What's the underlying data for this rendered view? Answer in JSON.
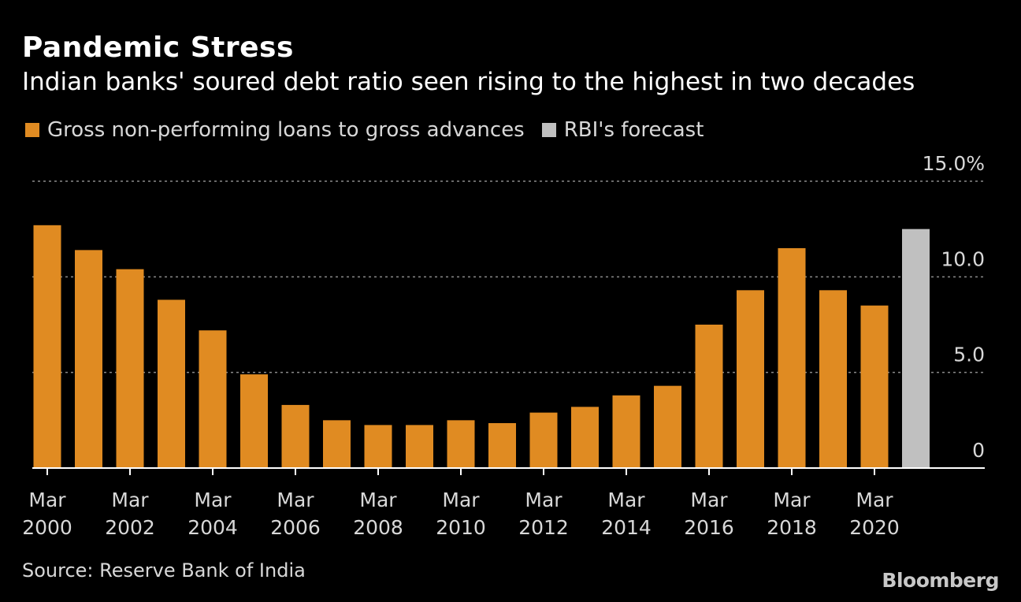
{
  "header": {
    "title": "Pandemic Stress",
    "subtitle": "Indian banks' soured debt ratio seen rising to the highest in two decades"
  },
  "legend": [
    {
      "label": "Gross non-performing loans to gross advances",
      "color": "#e08b22"
    },
    {
      "label": "RBI's forecast",
      "color": "#c0c0c0"
    }
  ],
  "footer": {
    "source": "Source: Reserve Bank of India",
    "brand": "Bloomberg"
  },
  "colors": {
    "background": "#000000",
    "actual": "#e08b22",
    "forecast": "#c0c0c0",
    "grid": "#8a8a8a",
    "axis": "#ffffff",
    "text": "#d8d8d8"
  },
  "chart_data": {
    "type": "bar",
    "title": "Pandemic Stress",
    "subtitle": "Indian banks' soured debt ratio seen rising to the highest in two decades",
    "categories": [
      "Mar 2000",
      "Mar 2001",
      "Mar 2002",
      "Mar 2003",
      "Mar 2004",
      "Mar 2005",
      "Mar 2006",
      "Mar 2007",
      "Mar 2008",
      "Mar 2009",
      "Mar 2010",
      "Mar 2011",
      "Mar 2012",
      "Mar 2013",
      "Mar 2014",
      "Mar 2015",
      "Mar 2016",
      "Mar 2017",
      "Mar 2018",
      "Mar 2019",
      "Mar 2020",
      "Mar 2021"
    ],
    "series": [
      {
        "name": "Gross non-performing loans to gross advances",
        "color": "#e08b22",
        "values": [
          12.7,
          11.4,
          10.4,
          8.8,
          7.2,
          4.9,
          3.3,
          2.5,
          2.25,
          2.25,
          2.5,
          2.35,
          2.9,
          3.2,
          3.8,
          4.3,
          7.5,
          9.3,
          11.5,
          9.3,
          8.5,
          null
        ]
      },
      {
        "name": "RBI's forecast",
        "color": "#c0c0c0",
        "values": [
          null,
          null,
          null,
          null,
          null,
          null,
          null,
          null,
          null,
          null,
          null,
          null,
          null,
          null,
          null,
          null,
          null,
          null,
          null,
          null,
          null,
          12.5
        ]
      }
    ],
    "x_tick_labels": [
      {
        "line1": "Mar",
        "line2": "2000",
        "index": 0
      },
      {
        "line1": "Mar",
        "line2": "2002",
        "index": 2
      },
      {
        "line1": "Mar",
        "line2": "2004",
        "index": 4
      },
      {
        "line1": "Mar",
        "line2": "2006",
        "index": 6
      },
      {
        "line1": "Mar",
        "line2": "2008",
        "index": 8
      },
      {
        "line1": "Mar",
        "line2": "2010",
        "index": 10
      },
      {
        "line1": "Mar",
        "line2": "2012",
        "index": 12
      },
      {
        "line1": "Mar",
        "line2": "2014",
        "index": 14
      },
      {
        "line1": "Mar",
        "line2": "2016",
        "index": 16
      },
      {
        "line1": "Mar",
        "line2": "2018",
        "index": 18
      },
      {
        "line1": "Mar",
        "line2": "2020",
        "index": 20
      }
    ],
    "y_ticks": [
      {
        "value": 0,
        "label": "0"
      },
      {
        "value": 5,
        "label": "5.0"
      },
      {
        "value": 10,
        "label": "10.0"
      },
      {
        "value": 15,
        "label": "15.0%"
      }
    ],
    "ylim": [
      0,
      15
    ],
    "grid": true,
    "legend_position": "top-left",
    "y_axis_side": "right"
  }
}
